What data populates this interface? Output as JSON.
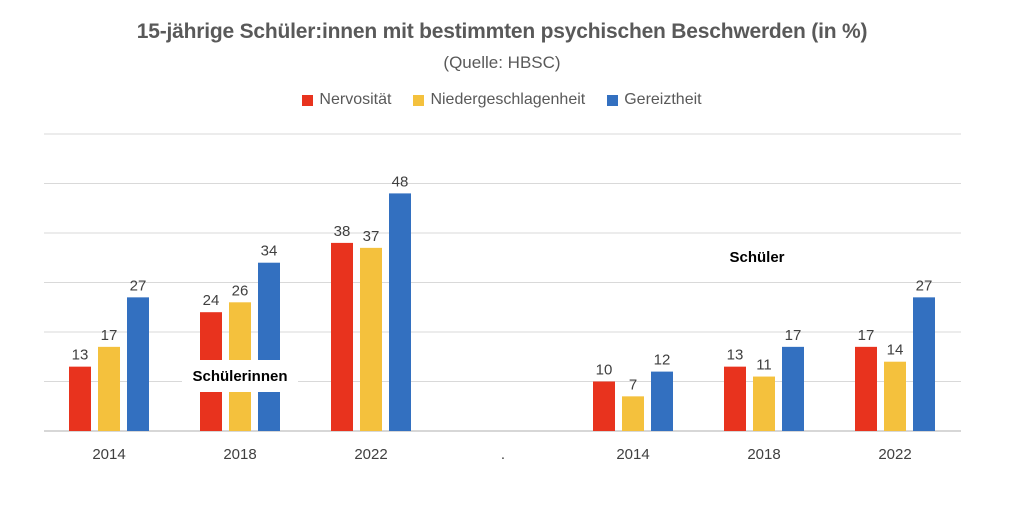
{
  "chart_data": {
    "type": "bar",
    "title": "15-jährige Schüler:innen mit bestimmten psychischen Beschwerden (in %)",
    "subtitle": "(Quelle: HBSC)",
    "categories": [
      "2014",
      "2018",
      "2022",
      ".",
      "2014",
      "2018",
      "2022"
    ],
    "series": [
      {
        "name": "Nervosität",
        "color": "#E8331E",
        "values": [
          13,
          24,
          38,
          null,
          10,
          13,
          17
        ]
      },
      {
        "name": "Niedergeschlagenheit",
        "color": "#F4C13D",
        "values": [
          17,
          26,
          37,
          null,
          7,
          11,
          14
        ]
      },
      {
        "name": "Gereiztheit",
        "color": "#3370C0",
        "values": [
          27,
          34,
          48,
          null,
          12,
          17,
          27
        ]
      }
    ],
    "annotations": [
      {
        "text": "Schülerinnen"
      },
      {
        "text": "Schüler"
      }
    ],
    "ylim": [
      0,
      60
    ],
    "grid": true,
    "legend_position": "top"
  }
}
